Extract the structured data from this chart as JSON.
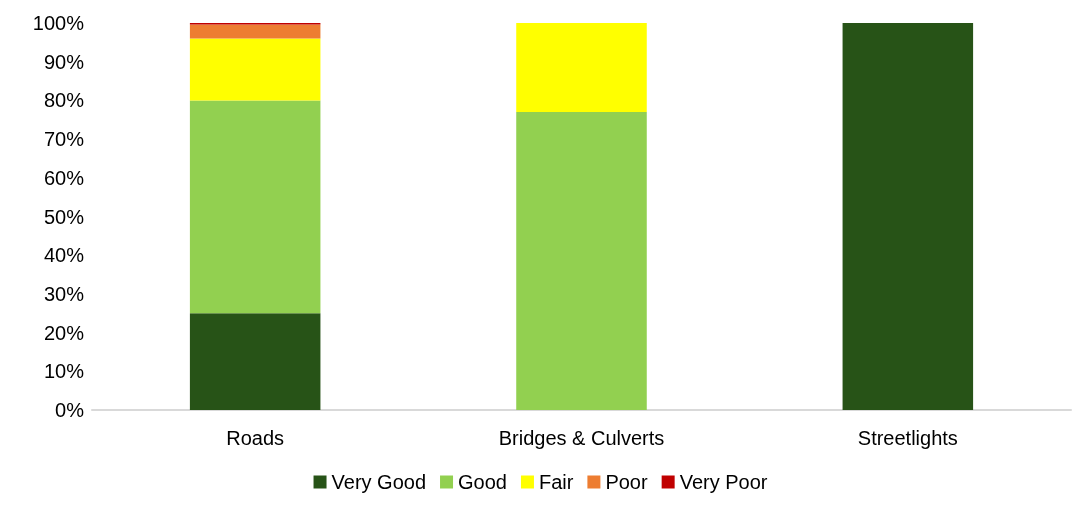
{
  "chart_data": {
    "type": "bar",
    "stacked": true,
    "categories": [
      "Roads",
      "Bridges & Culverts",
      "Streetlights"
    ],
    "series": [
      {
        "name": "Very Good",
        "color": "#275317",
        "values": [
          25,
          0,
          100
        ]
      },
      {
        "name": "Good",
        "color": "#92d050",
        "values": [
          55,
          77,
          0
        ]
      },
      {
        "name": "Fair",
        "color": "#ffff00",
        "values": [
          16,
          23,
          0
        ]
      },
      {
        "name": "Poor",
        "color": "#ed7d31",
        "values": [
          3.6,
          0,
          0
        ]
      },
      {
        "name": "Very Poor",
        "color": "#c00000",
        "values": [
          0.4,
          0,
          0
        ]
      }
    ],
    "ylim": [
      0,
      100
    ],
    "yticks": [
      {
        "value": 0,
        "label": "0%"
      },
      {
        "value": 10,
        "label": "10%"
      },
      {
        "value": 20,
        "label": "20%"
      },
      {
        "value": 30,
        "label": "30%"
      },
      {
        "value": 40,
        "label": "40%"
      },
      {
        "value": 50,
        "label": "50%"
      },
      {
        "value": 60,
        "label": "60%"
      },
      {
        "value": 70,
        "label": "70%"
      },
      {
        "value": 80,
        "label": "80%"
      },
      {
        "value": 90,
        "label": "90%"
      },
      {
        "value": 100,
        "label": "100%"
      }
    ],
    "grid": false,
    "legend": "bottom"
  }
}
